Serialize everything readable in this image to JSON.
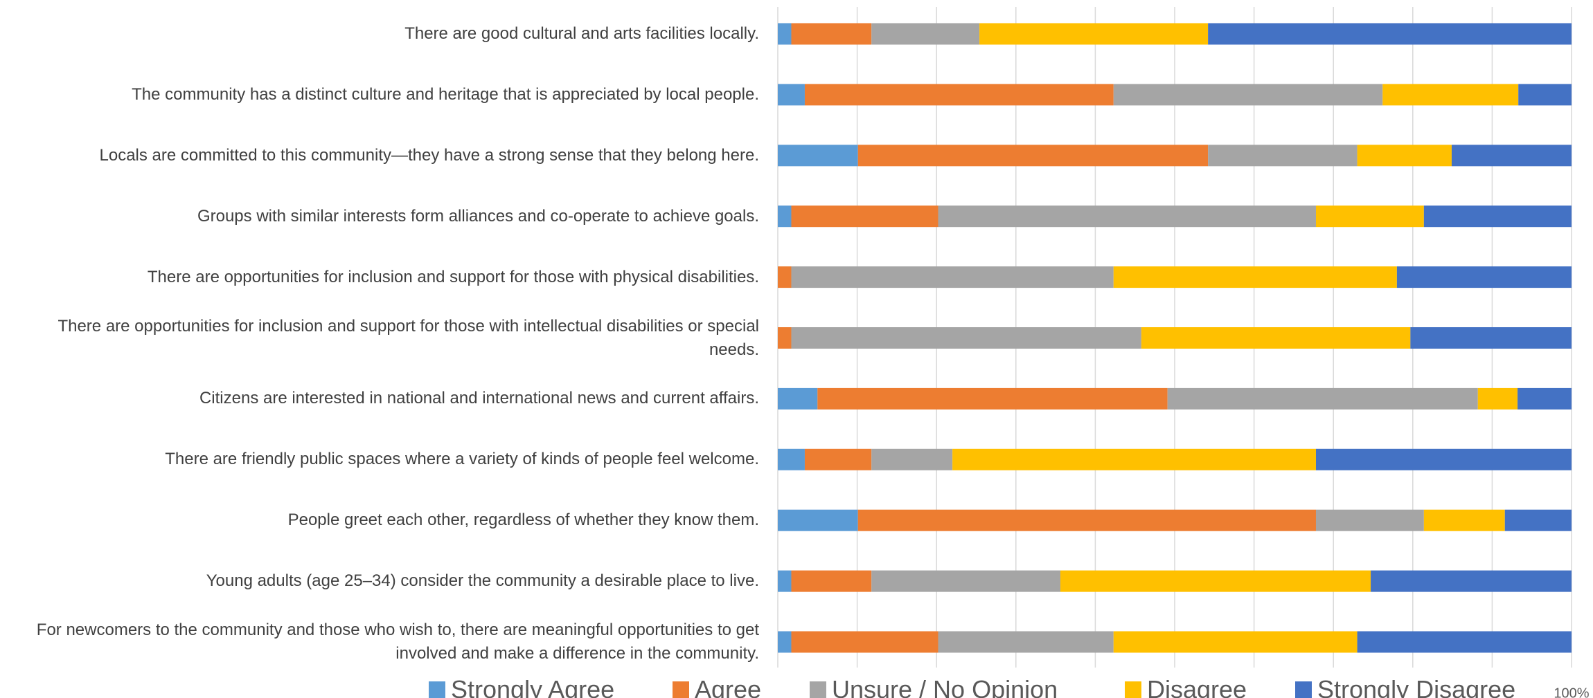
{
  "chart_data": {
    "type": "stacked_bar_horizontal",
    "categories": [
      "There are good cultural and arts facilities locally.",
      "The community has a distinct culture and heritage that is appreciated by local people.",
      "Locals are committed to this community—they have a strong sense that they belong here.",
      "Groups with similar interests form alliances and co-operate to achieve goals.",
      "There are opportunities for inclusion and support for those with physical disabilities.",
      "There are opportunities for inclusion and support for those with intellectual disabilities or special needs.",
      "Citizens are interested in national and international news and current affairs.",
      "There are friendly public spaces where a variety of kinds of people feel welcome.",
      "People greet each other, regardless of whether they know them.",
      "Young adults (age 25–34) consider the community a desirable place to live.",
      "For newcomers to the community and those who wish to, there are meaningful opportunities to get involved and make a difference in the community."
    ],
    "series": [
      {
        "name": "Strongly Agree",
        "color": "#5b9bd5",
        "values": [
          1.7,
          3.4,
          10.1,
          1.7,
          0,
          0,
          5.0,
          3.4,
          10.1,
          1.7,
          1.7
        ]
      },
      {
        "name": "Agree",
        "color": "#ed7d31",
        "values": [
          10.1,
          38.9,
          44.1,
          18.5,
          1.7,
          1.7,
          44.1,
          8.4,
          57.7,
          10.1,
          18.5
        ]
      },
      {
        "name": "Unsure / No Opinion",
        "color": "#a5a5a5",
        "values": [
          13.6,
          33.9,
          18.8,
          47.6,
          40.6,
          44.1,
          39.1,
          10.2,
          13.6,
          23.8,
          22.1
        ]
      },
      {
        "name": "Disagree",
        "color": "#ffc000",
        "values": [
          28.8,
          17.1,
          11.9,
          13.6,
          35.7,
          33.9,
          5.0,
          45.8,
          10.2,
          39.1,
          30.7
        ]
      },
      {
        "name": "Strongly Disagree",
        "color": "#4472c4",
        "values": [
          45.8,
          6.7,
          15.1,
          18.6,
          22.0,
          20.3,
          6.8,
          32.2,
          8.4,
          25.3,
          27.0
        ]
      }
    ],
    "xlim": [
      0,
      100
    ],
    "x_gridlines": [
      0,
      10,
      20,
      30,
      40,
      50,
      60,
      70,
      80,
      90,
      100
    ],
    "xticks": [
      {
        "value": 100,
        "label": "100%"
      }
    ],
    "grid": true,
    "legend": "bottom"
  }
}
